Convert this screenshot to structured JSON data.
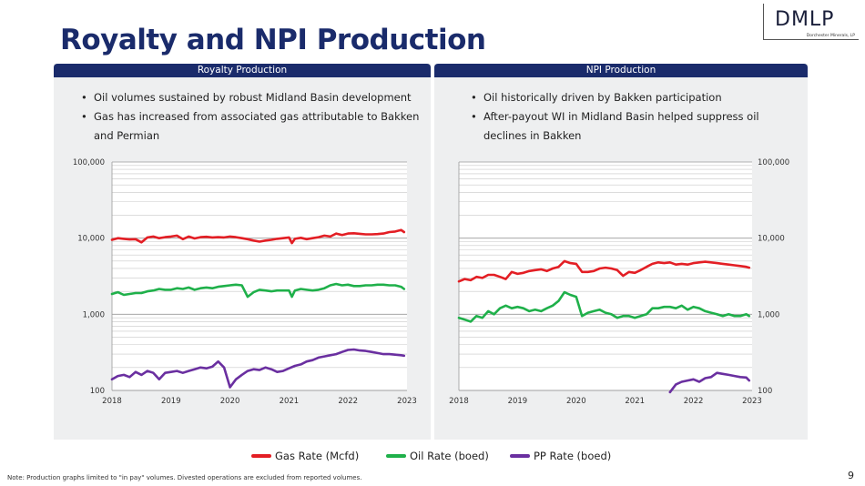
{
  "title": "Royalty and NPI Production",
  "logo": {
    "main": "DMLP",
    "sub": "Dorchester Minerals, LP"
  },
  "panels": {
    "left": {
      "header": "Royalty Production",
      "bullets": [
        "Oil volumes sustained by robust Midland Basin development",
        "Gas has increased from associated gas attributable to Bakken and Permian"
      ]
    },
    "right": {
      "header": "NPI Production",
      "bullets": [
        "Oil historically driven by Bakken participation",
        "After-payout WI in Midland Basin helped suppress oil declines in Bakken"
      ]
    }
  },
  "legend": [
    {
      "label": "Gas Rate (Mcfd)",
      "color": "#e31e24"
    },
    {
      "label": "Oil Rate (boed)",
      "color": "#1fb04a"
    },
    {
      "label": "PP Rate (boed)",
      "color": "#6a2fa0"
    }
  ],
  "footnote": "Note: Production graphs limited to \"in pay\" volumes. Divested operations are excluded from reported volumes.",
  "page_number": "9",
  "colors": {
    "gas": "#e31e24",
    "oil": "#1fb04a",
    "pp": "#6a2fa0",
    "navy": "#1a2b6b"
  },
  "chart_data": [
    {
      "type": "line",
      "title": "Royalty Production",
      "yscale": "log",
      "ylim": [
        100,
        100000
      ],
      "yticks": [
        "100",
        "1,000",
        "10,000",
        "100,000"
      ],
      "yvalues": [
        100,
        1000,
        10000,
        100000
      ],
      "xlim": [
        2018,
        2023
      ],
      "xticks": [
        "2018",
        "2019",
        "2020",
        "2021",
        "2022",
        "2023"
      ],
      "series": [
        {
          "name": "Gas Rate (Mcfd)",
          "x": [
            2018.0,
            2018.1,
            2018.2,
            2018.3,
            2018.4,
            2018.5,
            2018.6,
            2018.7,
            2018.8,
            2018.9,
            2019.0,
            2019.1,
            2019.2,
            2019.3,
            2019.4,
            2019.5,
            2019.6,
            2019.7,
            2019.8,
            2019.9,
            2020.0,
            2020.1,
            2020.2,
            2020.3,
            2020.4,
            2020.5,
            2020.6,
            2020.7,
            2020.8,
            2020.9,
            2021.0,
            2021.05,
            2021.1,
            2021.2,
            2021.3,
            2021.4,
            2021.5,
            2021.6,
            2021.7,
            2021.8,
            2021.9,
            2022.0,
            2022.1,
            2022.2,
            2022.3,
            2022.4,
            2022.5,
            2022.6,
            2022.7,
            2022.8,
            2022.9,
            2022.95
          ],
          "values": [
            9500,
            10000,
            9800,
            9600,
            9700,
            8800,
            10200,
            10500,
            10000,
            10300,
            10500,
            10800,
            9700,
            10500,
            9900,
            10300,
            10400,
            10200,
            10300,
            10200,
            10500,
            10300,
            10000,
            9700,
            9300,
            9000,
            9300,
            9500,
            9800,
            10000,
            10200,
            8600,
            9800,
            10100,
            9700,
            10000,
            10300,
            10800,
            10500,
            11500,
            11000,
            11500,
            11600,
            11400,
            11200,
            11200,
            11300,
            11500,
            12000,
            12200,
            12800,
            12000
          ]
        },
        {
          "name": "Oil Rate (boed)",
          "x": [
            2018.0,
            2018.1,
            2018.2,
            2018.3,
            2018.4,
            2018.5,
            2018.6,
            2018.7,
            2018.8,
            2018.9,
            2019.0,
            2019.1,
            2019.2,
            2019.3,
            2019.4,
            2019.5,
            2019.6,
            2019.7,
            2019.8,
            2019.9,
            2020.0,
            2020.1,
            2020.2,
            2020.3,
            2020.4,
            2020.5,
            2020.6,
            2020.7,
            2020.8,
            2020.9,
            2021.0,
            2021.05,
            2021.1,
            2021.2,
            2021.3,
            2021.4,
            2021.5,
            2021.6,
            2021.7,
            2021.8,
            2021.9,
            2022.0,
            2022.1,
            2022.2,
            2022.3,
            2022.4,
            2022.5,
            2022.6,
            2022.7,
            2022.8,
            2022.9,
            2022.95
          ],
          "values": [
            1850,
            1950,
            1800,
            1850,
            1900,
            1900,
            2000,
            2050,
            2150,
            2100,
            2100,
            2200,
            2150,
            2250,
            2100,
            2200,
            2250,
            2200,
            2300,
            2350,
            2400,
            2450,
            2400,
            1700,
            1950,
            2100,
            2050,
            2000,
            2050,
            2050,
            2050,
            1700,
            2050,
            2150,
            2100,
            2050,
            2100,
            2200,
            2400,
            2500,
            2400,
            2450,
            2350,
            2350,
            2400,
            2400,
            2450,
            2450,
            2400,
            2400,
            2300,
            2150
          ]
        },
        {
          "name": "PP Rate (boed)",
          "x": [
            2018.0,
            2018.1,
            2018.2,
            2018.3,
            2018.4,
            2018.5,
            2018.6,
            2018.7,
            2018.8,
            2018.9,
            2019.0,
            2019.1,
            2019.2,
            2019.3,
            2019.4,
            2019.5,
            2019.6,
            2019.7,
            2019.8,
            2019.9,
            2020.0,
            2020.1,
            2020.2,
            2020.3,
            2020.4,
            2020.5,
            2020.6,
            2020.7,
            2020.8,
            2020.9,
            2021.0,
            2021.1,
            2021.2,
            2021.3,
            2021.4,
            2021.5,
            2021.6,
            2021.7,
            2021.8,
            2021.9,
            2022.0,
            2022.1,
            2022.2,
            2022.3,
            2022.4,
            2022.5,
            2022.6,
            2022.7,
            2022.8,
            2022.9,
            2022.95
          ],
          "values": [
            140,
            155,
            160,
            150,
            175,
            160,
            180,
            170,
            140,
            170,
            175,
            180,
            170,
            180,
            190,
            200,
            195,
            205,
            240,
            200,
            110,
            140,
            160,
            180,
            190,
            185,
            200,
            190,
            175,
            180,
            195,
            210,
            220,
            240,
            250,
            270,
            280,
            290,
            300,
            320,
            340,
            345,
            335,
            330,
            320,
            310,
            300,
            300,
            295,
            290,
            285
          ]
        }
      ]
    },
    {
      "type": "line",
      "title": "NPI Production",
      "yscale": "log",
      "ylim": [
        100,
        100000
      ],
      "yticks": [
        "100",
        "1,000",
        "10,000",
        "100,000"
      ],
      "yvalues": [
        100,
        1000,
        10000,
        100000
      ],
      "xlim": [
        2018,
        2023
      ],
      "xticks": [
        "2018",
        "2019",
        "2020",
        "2021",
        "2022",
        "2023"
      ],
      "series": [
        {
          "name": "Gas Rate (Mcfd)",
          "x": [
            2018.0,
            2018.1,
            2018.2,
            2018.3,
            2018.4,
            2018.5,
            2018.6,
            2018.7,
            2018.8,
            2018.9,
            2019.0,
            2019.1,
            2019.2,
            2019.3,
            2019.4,
            2019.5,
            2019.6,
            2019.7,
            2019.8,
            2019.9,
            2020.0,
            2020.1,
            2020.2,
            2020.3,
            2020.4,
            2020.5,
            2020.6,
            2020.7,
            2020.8,
            2020.9,
            2021.0,
            2021.1,
            2021.2,
            2021.3,
            2021.4,
            2021.5,
            2021.6,
            2021.7,
            2021.8,
            2021.9,
            2022.0,
            2022.1,
            2022.2,
            2022.3,
            2022.4,
            2022.5,
            2022.6,
            2022.7,
            2022.8,
            2022.9,
            2022.95
          ],
          "values": [
            2700,
            2900,
            2800,
            3100,
            3000,
            3300,
            3300,
            3100,
            2900,
            3600,
            3400,
            3500,
            3700,
            3800,
            3900,
            3700,
            4000,
            4200,
            5000,
            4700,
            4600,
            3600,
            3600,
            3700,
            4000,
            4100,
            4000,
            3800,
            3200,
            3600,
            3500,
            3800,
            4200,
            4600,
            4800,
            4700,
            4800,
            4500,
            4600,
            4500,
            4700,
            4800,
            4900,
            4800,
            4700,
            4600,
            4500,
            4400,
            4300,
            4200,
            4100
          ]
        },
        {
          "name": "Oil Rate (boed)",
          "x": [
            2018.0,
            2018.1,
            2018.2,
            2018.3,
            2018.4,
            2018.5,
            2018.6,
            2018.7,
            2018.8,
            2018.9,
            2019.0,
            2019.1,
            2019.2,
            2019.3,
            2019.4,
            2019.5,
            2019.6,
            2019.7,
            2019.8,
            2019.9,
            2020.0,
            2020.1,
            2020.2,
            2020.3,
            2020.4,
            2020.5,
            2020.6,
            2020.7,
            2020.8,
            2020.9,
            2021.0,
            2021.1,
            2021.2,
            2021.3,
            2021.4,
            2021.5,
            2021.6,
            2021.7,
            2021.8,
            2021.9,
            2022.0,
            2022.1,
            2022.2,
            2022.3,
            2022.4,
            2022.5,
            2022.6,
            2022.7,
            2022.8,
            2022.9,
            2022.95
          ],
          "values": [
            900,
            850,
            800,
            950,
            900,
            1100,
            1000,
            1200,
            1300,
            1200,
            1250,
            1200,
            1100,
            1150,
            1100,
            1200,
            1300,
            1500,
            1950,
            1800,
            1700,
            950,
            1050,
            1100,
            1150,
            1050,
            1000,
            900,
            950,
            950,
            900,
            950,
            1000,
            1200,
            1200,
            1250,
            1250,
            1200,
            1300,
            1150,
            1250,
            1200,
            1100,
            1050,
            1000,
            950,
            1000,
            950,
            950,
            1000,
            950
          ]
        },
        {
          "name": "PP Rate (boed)",
          "x": [
            2021.6,
            2021.7,
            2021.8,
            2021.9,
            2022.0,
            2022.1,
            2022.2,
            2022.3,
            2022.4,
            2022.5,
            2022.6,
            2022.7,
            2022.8,
            2022.9,
            2022.95
          ],
          "values": [
            95,
            120,
            130,
            135,
            140,
            130,
            145,
            150,
            170,
            165,
            160,
            155,
            150,
            148,
            135
          ]
        }
      ]
    }
  ]
}
